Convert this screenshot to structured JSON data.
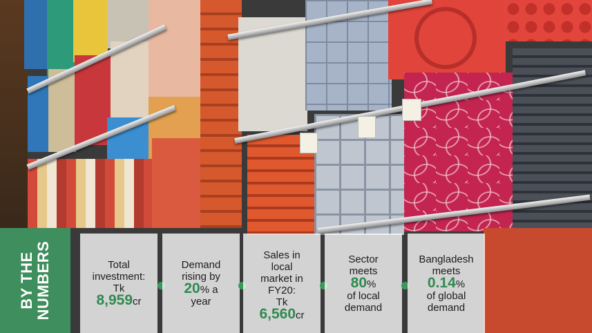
{
  "side_label": {
    "line1": "BY THE",
    "line2": "NUMBERS"
  },
  "colors": {
    "accent_green": "#3f8e5d",
    "number_green": "#2f8a4f"
  },
  "stats": [
    {
      "lines": [
        "Total",
        "investment:",
        "Tk"
      ],
      "number": "8,959",
      "unit": "cr",
      "after": []
    },
    {
      "lines": [
        "Demand",
        "rising by"
      ],
      "number": "20",
      "unit": "% a",
      "after": [
        "year"
      ]
    },
    {
      "lines": [
        "Sales in",
        "local",
        "market in",
        "FY20:",
        "Tk"
      ],
      "number": "6,560",
      "unit": "cr",
      "after": []
    },
    {
      "lines": [
        "Sector",
        "meets"
      ],
      "number": "80",
      "unit": "%",
      "after": [
        "of local",
        "demand"
      ]
    },
    {
      "lines": [
        "Bangladesh",
        "meets"
      ],
      "number": "0.14",
      "unit": "%",
      "after": [
        "of global",
        "demand"
      ]
    }
  ]
}
